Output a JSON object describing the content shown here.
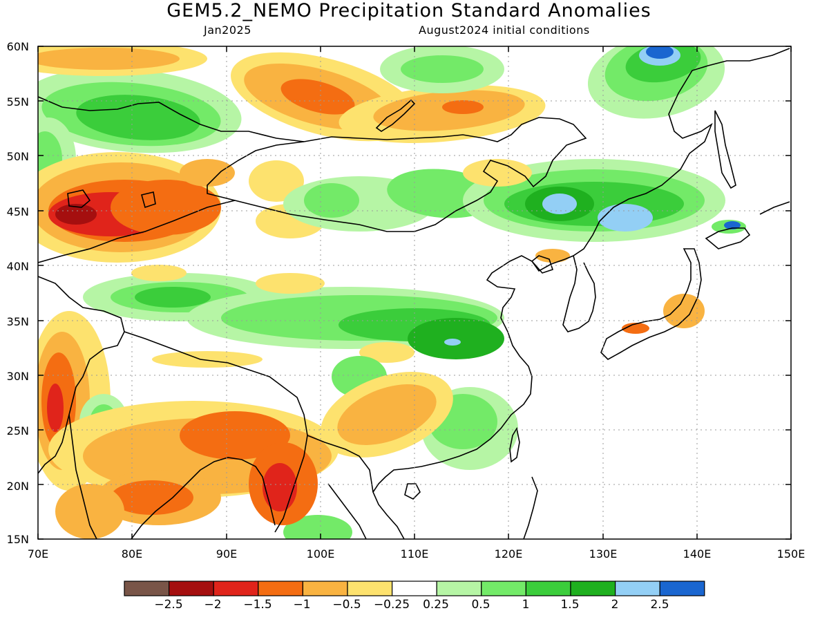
{
  "title": "GEM5.2_NEMO Precipitation Standard Anomalies",
  "subtitle_left": "Jan2025",
  "subtitle_right": "August2024 initial conditions",
  "map": {
    "lon_ticks": [
      "70E",
      "80E",
      "90E",
      "100E",
      "110E",
      "120E",
      "130E",
      "140E",
      "150E"
    ],
    "lat_ticks": [
      "15N",
      "20N",
      "25N",
      "30N",
      "35N",
      "40N",
      "45N",
      "50N",
      "55N",
      "60N"
    ],
    "lon_range": [
      70,
      150
    ],
    "lat_range": [
      15,
      60
    ],
    "gridlines": "dotted"
  },
  "colorbar": {
    "colors": [
      "#795548",
      "#a50f0f",
      "#e0241b",
      "#f46d12",
      "#f9b341",
      "#fde26e",
      "#ffffff",
      "#b6f5a5",
      "#73ea68",
      "#3bcd3b",
      "#1fb01f",
      "#93cff5",
      "#1a66d0"
    ],
    "labels": [
      "-2.5",
      "-2",
      "-1.5",
      "-1",
      "-0.5",
      "-0.25",
      "0.25",
      "0.5",
      "1",
      "1.5",
      "2",
      "2.5"
    ]
  }
}
